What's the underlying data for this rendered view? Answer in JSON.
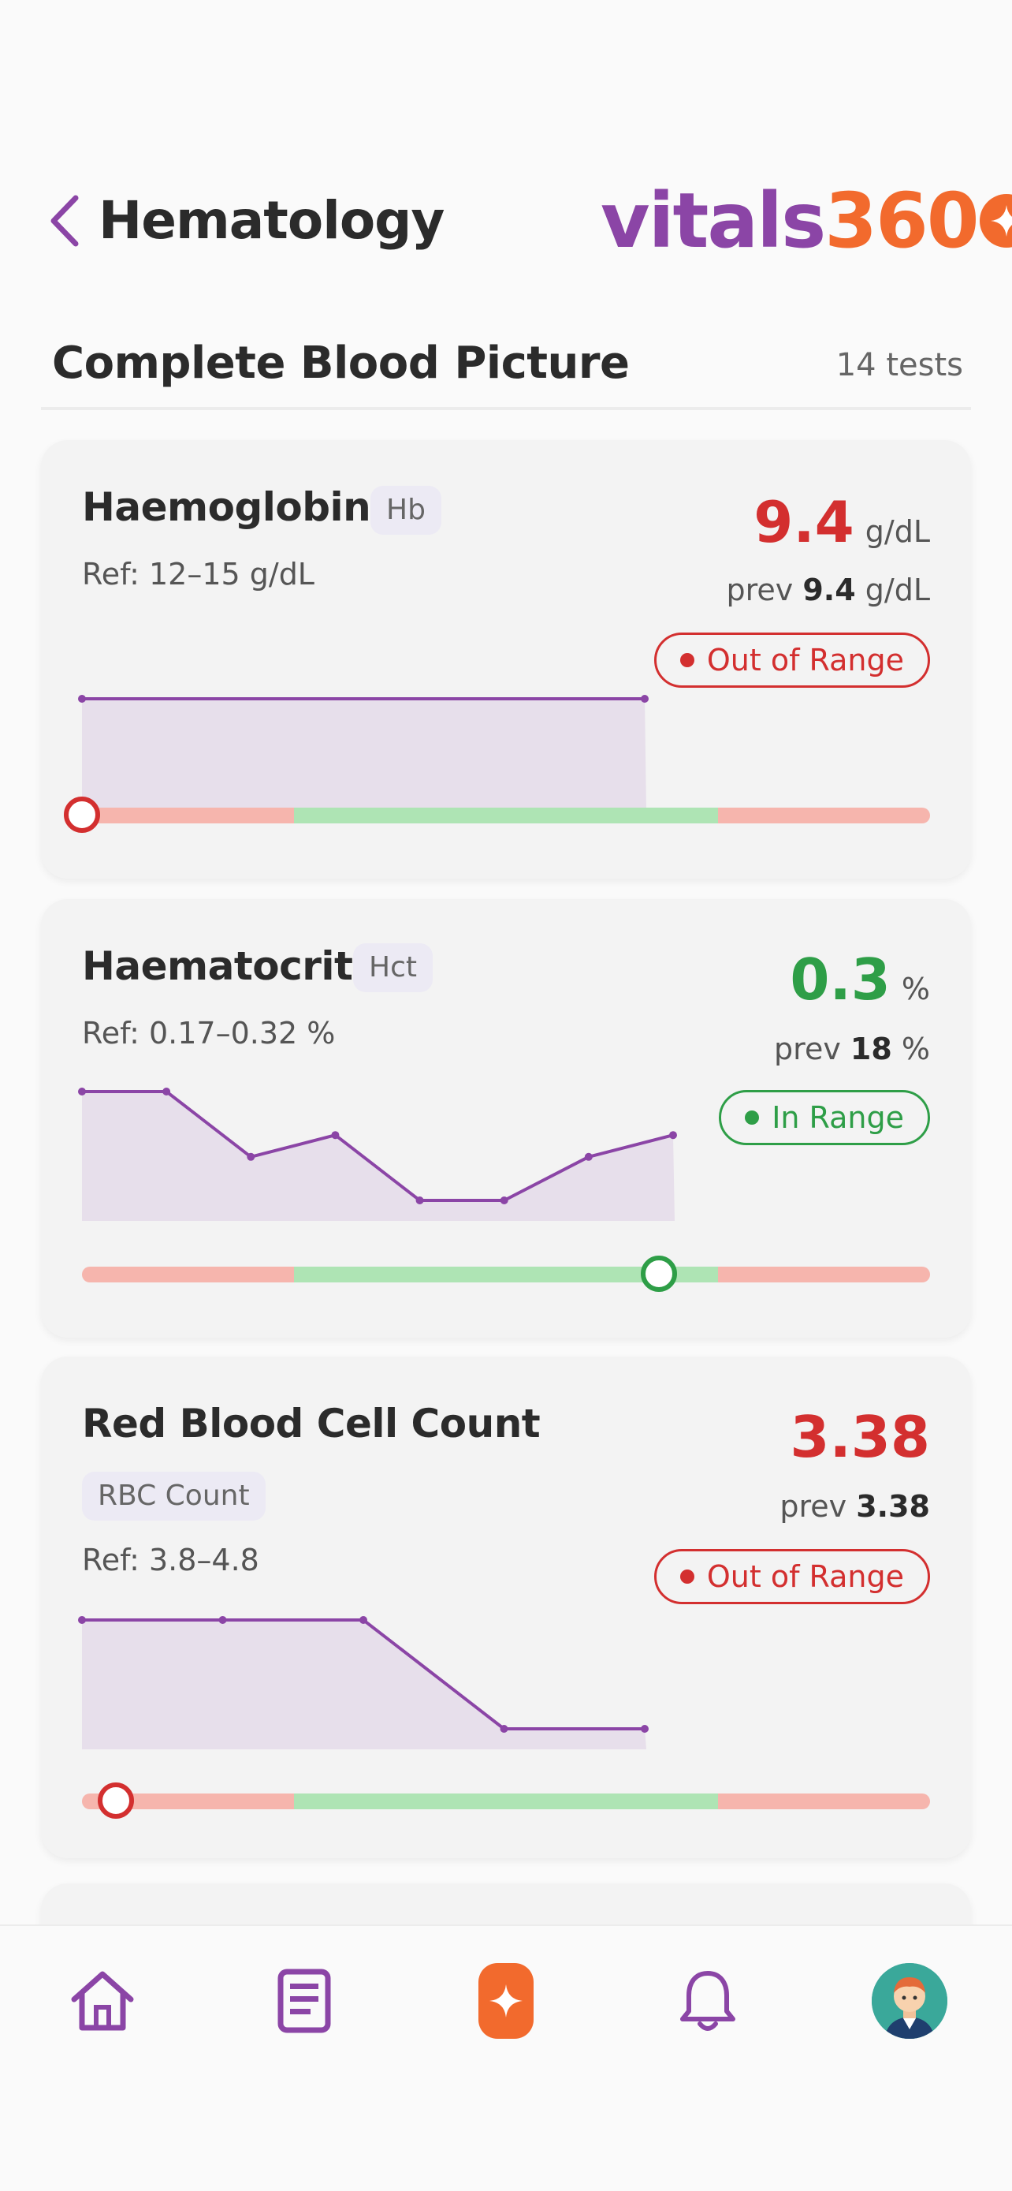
{
  "header": {
    "title": "Hematology",
    "logo_text_purple": "vitals",
    "logo_text_orange": "360",
    "colors": {
      "purple": "#8b45a6",
      "orange": "#f26a2d"
    }
  },
  "section": {
    "title": "Complete Blood Picture",
    "count": "14 tests"
  },
  "cards": [
    {
      "name": "Haemoglobin",
      "abbr": "Hb",
      "ref": "Ref: 12–15 g/dL",
      "value": "9.4",
      "unit": "g/dL",
      "prev_label": "prev",
      "prev_value": "9.4",
      "prev_unit": "g/dL",
      "status": "Out of Range",
      "trend": [
        9.4,
        9.4
      ],
      "range_level": 0.0
    },
    {
      "name": "Haematocrit",
      "abbr": "Hct",
      "ref": "Ref: 0.17–0.32 %",
      "value": "0.3",
      "unit": "%",
      "prev_label": "prev",
      "prev_value": "18",
      "prev_unit": "%",
      "status": "In Range",
      "trend": [
        6,
        6,
        3,
        4,
        1,
        1,
        3,
        4
      ],
      "range_level": 0.68
    },
    {
      "name": "Red Blood Cell Count",
      "abbr": "RBC Count",
      "ref": "Ref: 3.8–4.8",
      "value": "3.38",
      "unit": "",
      "prev_label": "prev",
      "prev_value": "3.38",
      "prev_unit": "",
      "status": "Out of Range",
      "trend": [
        4.8,
        4.8,
        4.8,
        3.38,
        3.38
      ],
      "range_level": 0.04
    }
  ],
  "nav": {
    "items": [
      "home-icon",
      "report-icon",
      "vitals-star-icon",
      "bell-icon",
      "profile-avatar"
    ]
  }
}
